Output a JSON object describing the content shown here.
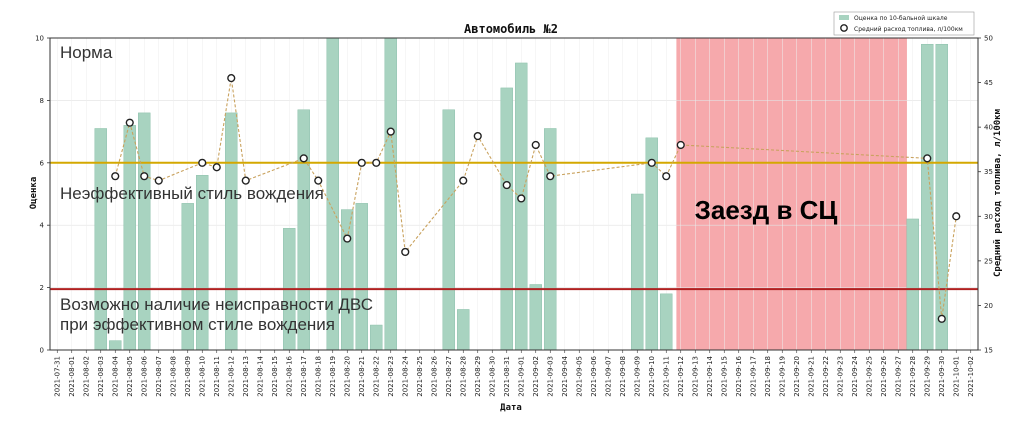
{
  "chart_data": {
    "type": "bar",
    "title": "Автомобиль №2",
    "xlabel": "Дата",
    "ylabel": "Оценка",
    "y2label": "Средний расход топлива, л/100км",
    "ylim": [
      0,
      10
    ],
    "y2lim": [
      15,
      50
    ],
    "yticks": [
      0,
      2,
      4,
      6,
      8,
      10
    ],
    "y2ticks": [
      15,
      20,
      25,
      30,
      35,
      40,
      45,
      50
    ],
    "grid": true,
    "legend_position": "top-right",
    "colors": {
      "bar": "#a8d3c0",
      "bar_edge": "#8cc0aa",
      "line": "#c9a25e",
      "service_band": "#f49a9e",
      "upper_threshold": "#d4a800",
      "lower_threshold": "#b02020"
    },
    "dates": [
      "2021-07-31",
      "2021-08-01",
      "2021-08-02",
      "2021-08-03",
      "2021-08-04",
      "2021-08-05",
      "2021-08-06",
      "2021-08-07",
      "2021-08-08",
      "2021-08-09",
      "2021-08-10",
      "2021-08-11",
      "2021-08-12",
      "2021-08-13",
      "2021-08-14",
      "2021-08-15",
      "2021-08-16",
      "2021-08-17",
      "2021-08-18",
      "2021-08-19",
      "2021-08-20",
      "2021-08-21",
      "2021-08-22",
      "2021-08-23",
      "2021-08-24",
      "2021-08-25",
      "2021-08-26",
      "2021-08-27",
      "2021-08-28",
      "2021-08-29",
      "2021-08-30",
      "2021-08-31",
      "2021-09-01",
      "2021-09-02",
      "2021-09-03",
      "2021-09-04",
      "2021-09-05",
      "2021-09-06",
      "2021-09-07",
      "2021-09-08",
      "2021-09-09",
      "2021-09-10",
      "2021-09-11",
      "2021-09-12",
      "2021-09-13",
      "2021-09-14",
      "2021-09-15",
      "2021-09-16",
      "2021-09-17",
      "2021-09-18",
      "2021-09-19",
      "2021-09-20",
      "2021-09-21",
      "2021-09-22",
      "2021-09-23",
      "2021-09-24",
      "2021-09-25",
      "2021-09-26",
      "2021-09-27",
      "2021-09-28",
      "2021-09-29",
      "2021-09-30",
      "2021-10-01",
      "2021-10-02"
    ],
    "series": [
      {
        "name": "Оценка по 10-бальной шкале",
        "kind": "bar",
        "axis": "left",
        "points": [
          {
            "date": "2021-08-03",
            "value": 7.1
          },
          {
            "date": "2021-08-04",
            "value": 0.3
          },
          {
            "date": "2021-08-05",
            "value": 7.2
          },
          {
            "date": "2021-08-06",
            "value": 7.6
          },
          {
            "date": "2021-08-09",
            "value": 4.7
          },
          {
            "date": "2021-08-10",
            "value": 5.6
          },
          {
            "date": "2021-08-12",
            "value": 7.6
          },
          {
            "date": "2021-08-16",
            "value": 3.9
          },
          {
            "date": "2021-08-17",
            "value": 7.7
          },
          {
            "date": "2021-08-19",
            "value": 10.0
          },
          {
            "date": "2021-08-20",
            "value": 4.5
          },
          {
            "date": "2021-08-21",
            "value": 4.7
          },
          {
            "date": "2021-08-22",
            "value": 0.8
          },
          {
            "date": "2021-08-23",
            "value": 10.0
          },
          {
            "date": "2021-08-27",
            "value": 7.7
          },
          {
            "date": "2021-08-28",
            "value": 1.3
          },
          {
            "date": "2021-08-31",
            "value": 8.4
          },
          {
            "date": "2021-09-01",
            "value": 9.2
          },
          {
            "date": "2021-09-02",
            "value": 2.1
          },
          {
            "date": "2021-09-03",
            "value": 7.1
          },
          {
            "date": "2021-09-09",
            "value": 5.0
          },
          {
            "date": "2021-09-10",
            "value": 6.8
          },
          {
            "date": "2021-09-11",
            "value": 1.8
          },
          {
            "date": "2021-09-28",
            "value": 4.2
          },
          {
            "date": "2021-09-29",
            "value": 9.8
          },
          {
            "date": "2021-09-30",
            "value": 9.8
          }
        ]
      },
      {
        "name": "Средний расход топлива, л/100км",
        "kind": "line",
        "axis": "right",
        "points": [
          {
            "date": "2021-08-04",
            "value": 34.5
          },
          {
            "date": "2021-08-05",
            "value": 40.5
          },
          {
            "date": "2021-08-06",
            "value": 34.5
          },
          {
            "date": "2021-08-07",
            "value": 34.0
          },
          {
            "date": "2021-08-10",
            "value": 36.0
          },
          {
            "date": "2021-08-11",
            "value": 35.5
          },
          {
            "date": "2021-08-12",
            "value": 45.5
          },
          {
            "date": "2021-08-13",
            "value": 34.0
          },
          {
            "date": "2021-08-17",
            "value": 36.5
          },
          {
            "date": "2021-08-18",
            "value": 34.0
          },
          {
            "date": "2021-08-20",
            "value": 27.5
          },
          {
            "date": "2021-08-21",
            "value": 36.0
          },
          {
            "date": "2021-08-22",
            "value": 36.0
          },
          {
            "date": "2021-08-23",
            "value": 39.5
          },
          {
            "date": "2021-08-24",
            "value": 26.0
          },
          {
            "date": "2021-08-28",
            "value": 34.0
          },
          {
            "date": "2021-08-29",
            "value": 39.0
          },
          {
            "date": "2021-08-31",
            "value": 33.5
          },
          {
            "date": "2021-09-01",
            "value": 32.0
          },
          {
            "date": "2021-09-02",
            "value": 38.0
          },
          {
            "date": "2021-09-03",
            "value": 34.5
          },
          {
            "date": "2021-09-10",
            "value": 36.0
          },
          {
            "date": "2021-09-11",
            "value": 34.5
          },
          {
            "date": "2021-09-12",
            "value": 38.0
          },
          {
            "date": "2021-09-29",
            "value": 36.5
          },
          {
            "date": "2021-09-30",
            "value": 18.5
          },
          {
            "date": "2021-10-01",
            "value": 30.0
          }
        ]
      }
    ],
    "thresholds": [
      {
        "name": "upper",
        "value": 6.0
      },
      {
        "name": "lower",
        "value": 1.95
      }
    ],
    "annotations": {
      "zone_norm": "Норма",
      "zone_inefficient": "Неэффективный стиль вождения",
      "zone_fault_line1": "Возможно наличие неисправности ДВС",
      "zone_fault_line2": "при эффективном стиле вождения",
      "service_label": "Заезд в СЦ",
      "service_range": [
        "2021-09-12",
        "2021-09-28"
      ]
    }
  }
}
